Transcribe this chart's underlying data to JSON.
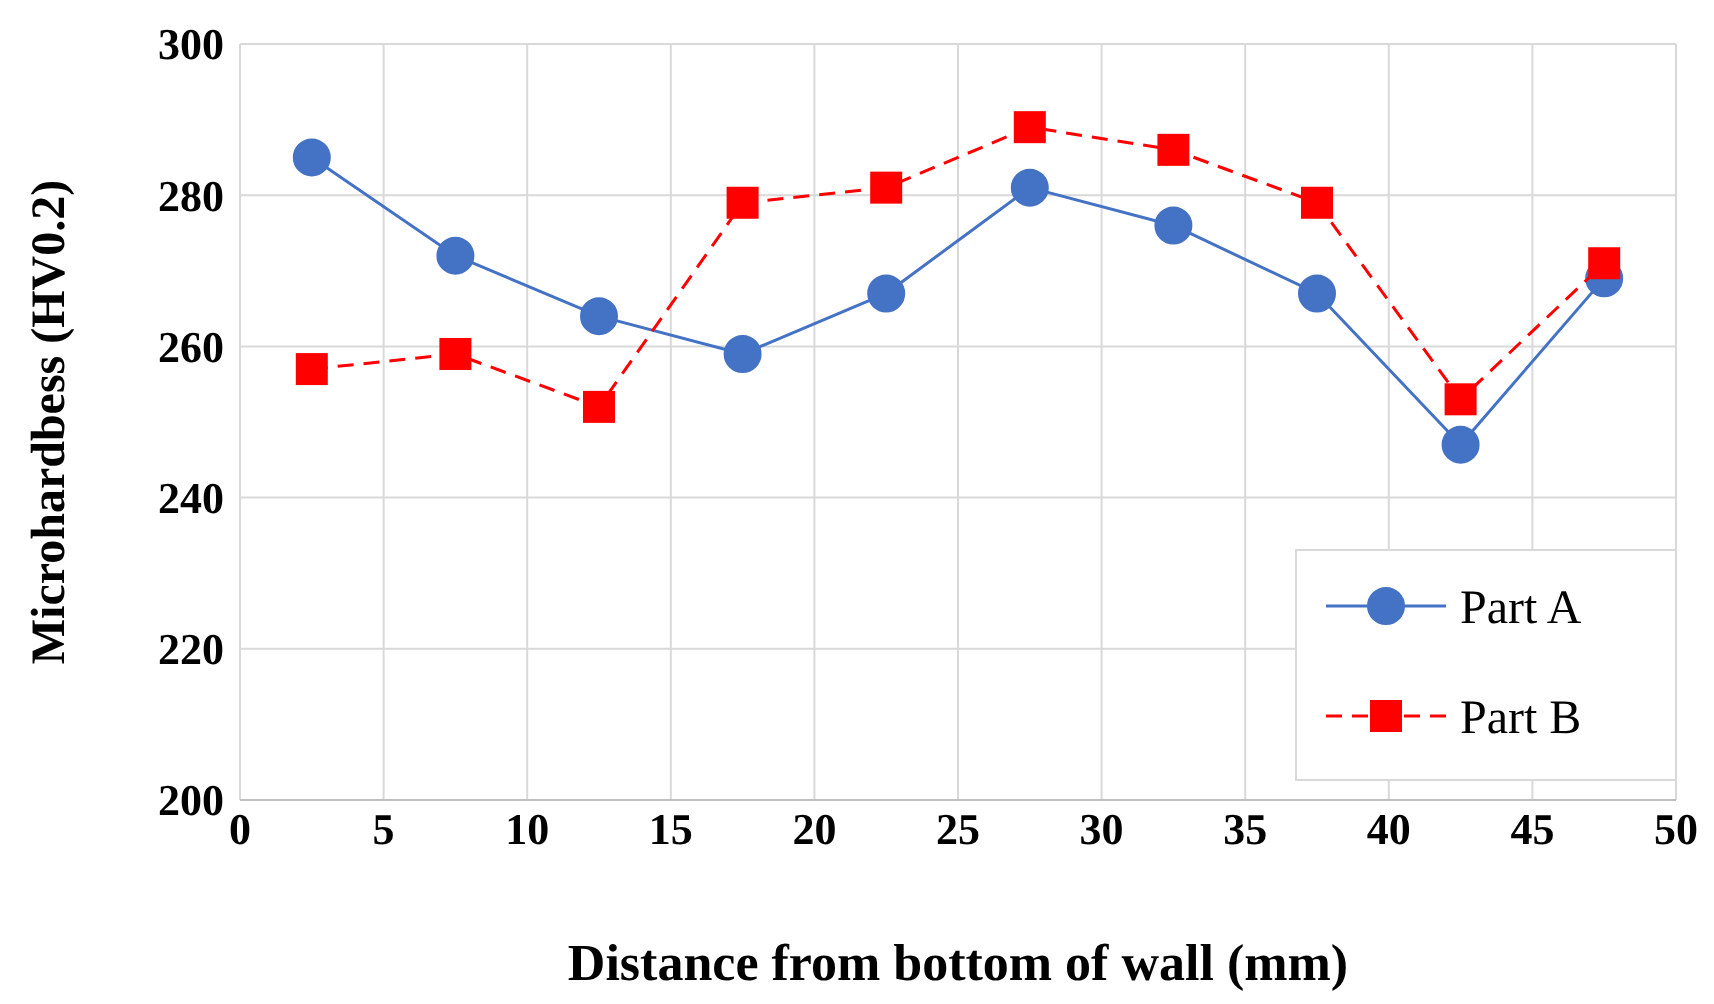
{
  "chart_data": {
    "type": "line",
    "xlabel": "Distance from bottom of wall (mm)",
    "ylabel": "Microhardbess (HV0.2)",
    "x": [
      2.5,
      7.5,
      12.5,
      17.5,
      22.5,
      27.5,
      32.5,
      37.5,
      42.5,
      47.5
    ],
    "series": [
      {
        "name": "Part A",
        "color": "#4472c4",
        "marker": "circle",
        "line_style": "solid",
        "values": [
          285,
          272,
          264,
          259,
          267,
          281,
          276,
          267,
          247,
          269
        ]
      },
      {
        "name": "Part B",
        "color": "#ff0000",
        "marker": "square",
        "line_style": "dashed",
        "values": [
          257,
          259,
          252,
          279,
          281,
          289,
          286,
          279,
          253,
          271
        ]
      }
    ],
    "xlim": [
      0,
      50
    ],
    "xticks": [
      0,
      5,
      10,
      15,
      20,
      25,
      30,
      35,
      40,
      45,
      50
    ],
    "ylim": [
      200,
      300
    ],
    "yticks": [
      200,
      220,
      240,
      260,
      280,
      300
    ],
    "grid": true,
    "legend": "bottom right"
  }
}
